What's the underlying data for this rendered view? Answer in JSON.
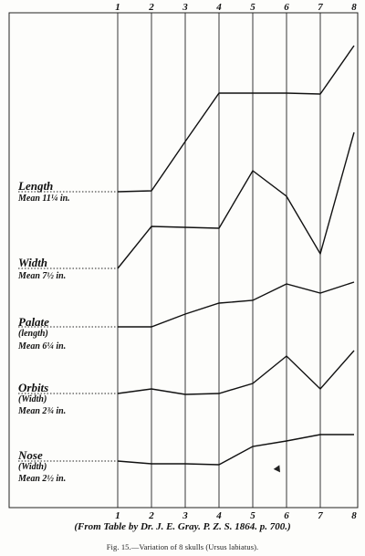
{
  "chart_data": {
    "type": "line",
    "title": "",
    "source": "(From Table by Dr. J. E. Gray. P. Z. S. 1864. p. 700.)",
    "caption": "Fig. 15.—Variation of 8 skulls (Ursus labiatus).",
    "x": [
      "1",
      "2",
      "3",
      "4",
      "5",
      "6",
      "7",
      "8"
    ],
    "grid": "vertical lines at each skull number",
    "series": [
      {
        "name": "Length",
        "mean_label": "Mean 11¼ in.",
        "values": [
          210,
          209,
          155,
          102,
          102,
          102,
          103,
          50
        ]
      },
      {
        "name": "Width",
        "mean_label": "Mean 7½ in.",
        "values": [
          294,
          248,
          249,
          250,
          187,
          215,
          278,
          145
        ]
      },
      {
        "name": "Palate",
        "sublabel": "(length)",
        "mean_label": "Mean 6¼ in.",
        "values": [
          358,
          358,
          344,
          332,
          329,
          311,
          321,
          309
        ]
      },
      {
        "name": "Orbits",
        "sublabel": "(Width)",
        "mean_label": "Mean 2¾ in.",
        "values": [
          431,
          426,
          432,
          431,
          420,
          390,
          426,
          384
        ]
      },
      {
        "name": "Nose",
        "sublabel": "(Width)",
        "mean_label": "Mean 2½ in.",
        "values": [
          505,
          508,
          508,
          509,
          489,
          483,
          476,
          476
        ]
      }
    ]
  }
}
